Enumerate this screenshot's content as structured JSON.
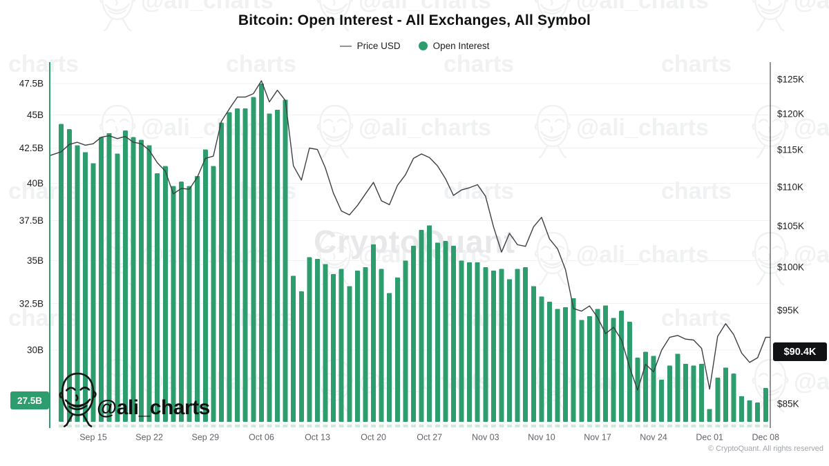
{
  "title": "Bitcoin: Open Interest - All Exchanges, All Symbol",
  "legend": {
    "price_label": "Price USD",
    "oi_label": "Open Interest"
  },
  "badges": {
    "left": "27.5B",
    "right": "$90.4K"
  },
  "footer": {
    "copyright": "© CryptoQuant. All rights reserved"
  },
  "logo": {
    "handle": "@ali_charts"
  },
  "watermark": {
    "brand": "CryptoQuant",
    "handle": "@ali_charts",
    "fragment": "charts"
  },
  "colors": {
    "bar": "#2e9d6d",
    "bar_stub": "#cfe8da",
    "line": "#3b3f43",
    "left_axis_spine": "#2e9d6d",
    "right_axis_spine": "#26282b",
    "grid": "#f2f2f2",
    "tick_text": "#1d1e20",
    "x_tick_text": "#5f6368",
    "badge_left_bg": "#2e9d6d",
    "badge_right_bg": "#101214",
    "watermark_gray": "#f0f1f2",
    "brand_watermark": "#e8e8ea"
  },
  "chart_data": {
    "type": "bar+line",
    "title": "Bitcoin: Open Interest - All Exchanges, All Symbol",
    "x_range": {
      "start": "Sep 11",
      "end": "Dec 08",
      "freq": "daily",
      "points": 89
    },
    "x_tick_labels": [
      "Sep 15",
      "Sep 22",
      "Sep 29",
      "Oct 06",
      "Oct 13",
      "Oct 20",
      "Oct 27",
      "Nov 03",
      "Nov 10",
      "Nov 17",
      "Nov 24",
      "Dec 01",
      "Dec 08"
    ],
    "x_tick_indices": [
      4,
      11,
      18,
      25,
      32,
      39,
      46,
      53,
      60,
      67,
      74,
      81,
      88
    ],
    "left_axis": {
      "title": "Open Interest (USD)",
      "scale": "log",
      "range": [
        27.5,
        47.5
      ],
      "tick_values": [
        47.5,
        45,
        42.5,
        40,
        37.5,
        35,
        32.5,
        30
      ],
      "tick_labels": [
        "47.5B",
        "45B",
        "42.5B",
        "40B",
        "37.5B",
        "35B",
        "32.5B",
        "30B"
      ],
      "badge_value": 27.5,
      "badge_label": "27.5B"
    },
    "right_axis": {
      "title": "Price USD",
      "scale": "log",
      "range": [
        85,
        125
      ],
      "tick_values": [
        125,
        120,
        115,
        110,
        105,
        100,
        95,
        85
      ],
      "tick_labels": [
        "$125K",
        "$120K",
        "$115K",
        "$110K",
        "$105K",
        "$100K",
        "$95K",
        "$85K"
      ],
      "badge_value": 90.4,
      "badge_label": "$90.4K"
    },
    "series": [
      {
        "name": "Open Interest",
        "unit": "billion USD",
        "style": "bar",
        "color": "#2e9d6d",
        "values": [
          44.3,
          43.9,
          42.7,
          42.2,
          41.4,
          43.3,
          43.6,
          42.1,
          43.8,
          43.3,
          43.1,
          42.7,
          40.7,
          41.2,
          39.8,
          40.1,
          39.8,
          40.5,
          42.4,
          41.2,
          44.4,
          45.2,
          45.5,
          45.5,
          46.4,
          47.5,
          45.1,
          45.4,
          46.2,
          34.1,
          33.2,
          35.2,
          35.1,
          34.8,
          34.2,
          34.5,
          33.5,
          34.4,
          34.6,
          36.0,
          34.5,
          33.1,
          34.0,
          35.0,
          35.9,
          36.9,
          37.2,
          36.1,
          36.2,
          35.9,
          35.0,
          34.9,
          34.9,
          34.6,
          34.4,
          34.5,
          33.9,
          34.5,
          34.6,
          33.5,
          32.9,
          32.6,
          32.2,
          32.3,
          32.8,
          31.6,
          31.8,
          32.2,
          32.4,
          31.7,
          32.1,
          31.5,
          29.6,
          29.9,
          29.7,
          28.5,
          29.2,
          29.8,
          29.3,
          29.2,
          29.3,
          27.1,
          28.6,
          29.1,
          28.8,
          27.7,
          27.5,
          27.4,
          28.1
        ]
      },
      {
        "name": "Price USD",
        "unit": "thousand USD",
        "style": "line",
        "color": "#3b3f43",
        "values": [
          114.7,
          115.7,
          116.0,
          115.6,
          115.8,
          116.7,
          116.9,
          116.5,
          116.8,
          116.0,
          115.8,
          114.9,
          113.2,
          112.1,
          109.1,
          109.8,
          109.7,
          111.3,
          113.8,
          114.1,
          118.9,
          120.7,
          122.4,
          122.4,
          122.9,
          124.8,
          121.7,
          123.4,
          121.9,
          112.8,
          110.9,
          115.2,
          115.0,
          112.5,
          109.2,
          106.9,
          106.4,
          107.6,
          109.1,
          110.6,
          108.2,
          107.7,
          110.2,
          111.6,
          113.8,
          114.4,
          113.9,
          112.8,
          111.1,
          108.9,
          109.6,
          109.9,
          110.3,
          108.8,
          104.9,
          101.8,
          104.1,
          102.7,
          102.5,
          104.9,
          106.1,
          103.4,
          102.2,
          99.7,
          95.2,
          94.9,
          95.5,
          94.2,
          92.4,
          93.1,
          91.7,
          88.8,
          86.4,
          89.1,
          88.3,
          90.6,
          92.0,
          92.2,
          91.8,
          91.7,
          90.8,
          86.5,
          92.1,
          93.5,
          92.3,
          90.3,
          89.3,
          89.8,
          92.0
        ]
      }
    ],
    "legend_position": "top",
    "grid": "horizontal-faint"
  }
}
